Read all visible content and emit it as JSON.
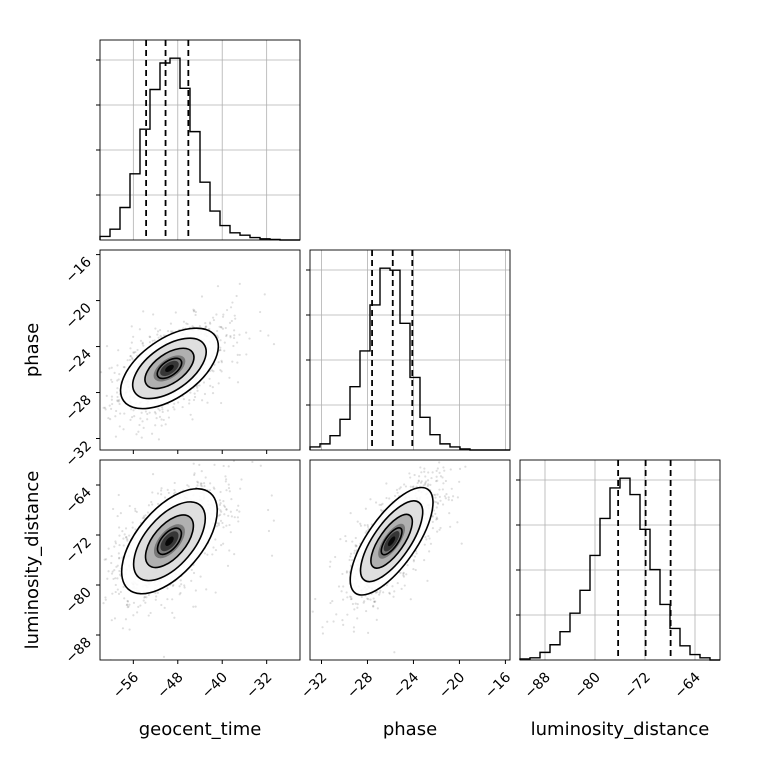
{
  "chart_data": [
    {
      "type": "histogram",
      "parameter": "geocent_time",
      "grid": true,
      "xlim": [
        -62,
        -26
      ],
      "xticks": [
        "−56",
        "−48",
        "−40",
        "−32"
      ],
      "bin_edges": [
        -62,
        -60.2,
        -58.4,
        -56.6,
        -54.8,
        -53,
        -51.2,
        -49.4,
        -47.6,
        -45.8,
        -44,
        -42.2,
        -40.4,
        -38.6,
        -36.8,
        -35,
        -33.2,
        -31.4,
        -29.6,
        -27.8,
        -26
      ],
      "counts": [
        3,
        9,
        27,
        55,
        92,
        125,
        147,
        151,
        126,
        90,
        48,
        24,
        12,
        6,
        4,
        2,
        1,
        0.5,
        0,
        0
      ],
      "quantiles": [
        -53.7,
        -50.2,
        -46.1
      ]
    },
    {
      "type": "histogram",
      "parameter": "phase",
      "grid": true,
      "xlim": [
        -33,
        -15.6
      ],
      "xticks": [
        "−32",
        "−28",
        "−24",
        "−20",
        "−16"
      ],
      "bin_edges": [
        -33,
        -32.13,
        -31.26,
        -30.39,
        -29.52,
        -28.65,
        -27.78,
        -26.91,
        -26.04,
        -25.17,
        -24.3,
        -23.43,
        -22.56,
        -21.69,
        -20.82,
        -19.95,
        -19.08,
        -18.21,
        -17.34,
        -16.47,
        -15.6
      ],
      "counts": [
        3,
        6,
        14,
        30,
        62,
        97,
        142,
        178,
        176,
        124,
        71,
        32,
        15,
        6,
        3,
        1,
        0,
        0,
        0,
        0
      ],
      "quantiles": [
        -27.6,
        -25.8,
        -24.1
      ]
    },
    {
      "type": "histogram",
      "parameter": "luminosity_distance",
      "grid": true,
      "xlim": [
        -92,
        -60
      ],
      "xticks": [
        "−88",
        "−80",
        "−72",
        "−64"
      ],
      "bin_edges": [
        -92,
        -90.4,
        -88.8,
        -87.2,
        -85.6,
        -84,
        -82.4,
        -80.8,
        -79.2,
        -77.6,
        -76,
        -74.4,
        -72.8,
        -71.2,
        -69.6,
        -68,
        -66.4,
        -64.8,
        -63.2,
        -61.6,
        -60
      ],
      "counts": [
        1,
        2,
        7,
        14,
        26,
        43,
        64,
        96,
        130,
        158,
        167,
        152,
        120,
        83,
        51,
        29,
        13,
        5,
        2,
        0
      ],
      "quantiles": [
        -76.3,
        -71.9,
        -67.9
      ]
    },
    {
      "type": "2d-histogram-contour",
      "x_parameter": "geocent_time",
      "y_parameter": "phase",
      "xlim": [
        -62,
        -26
      ],
      "ylim": [
        -33,
        -15.6
      ],
      "yticks": [
        "−32",
        "−28",
        "−24",
        "−20",
        "−16"
      ],
      "center": [
        -49.5,
        -25.9
      ],
      "sd": [
        4.4,
        1.75
      ],
      "correlation": 0.55,
      "contour_sigmas": [
        0.5,
        1.0,
        1.5,
        2.0
      ]
    },
    {
      "type": "2d-histogram-contour",
      "x_parameter": "geocent_time",
      "y_parameter": "luminosity_distance",
      "xlim": [
        -62,
        -26
      ],
      "ylim": [
        -92,
        -60
      ],
      "yticks": [
        "−88",
        "−80",
        "−72",
        "−64"
      ],
      "center": [
        -49.5,
        -73
      ],
      "sd": [
        4.3,
        4.2
      ],
      "correlation": 0.58,
      "contour_sigmas": [
        0.5,
        1.0,
        1.5,
        2.0
      ]
    },
    {
      "type": "2d-histogram-contour",
      "x_parameter": "phase",
      "y_parameter": "luminosity_distance",
      "xlim": [
        -33,
        -15.6
      ],
      "ylim": [
        -92,
        -60
      ],
      "center": [
        -25.9,
        -73
      ],
      "sd": [
        1.8,
        4.3
      ],
      "correlation": 0.72,
      "contour_sigmas": [
        0.5,
        1.0,
        1.5,
        2.0
      ]
    }
  ],
  "labels": {
    "x1": "geocent_time",
    "x2": "phase",
    "x3": "luminosity_distance",
    "y2": "phase",
    "y3": "luminosity_distance"
  }
}
